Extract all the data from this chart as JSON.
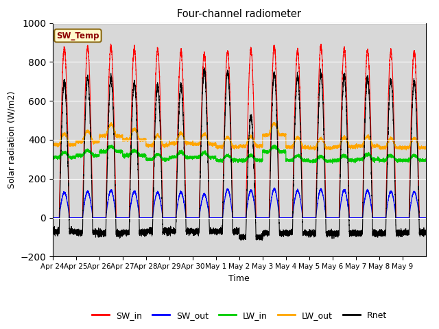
{
  "title": "Four-channel radiometer",
  "xlabel": "Time",
  "ylabel": "Solar radiation (W/m2)",
  "ylim": [
    -200,
    1000
  ],
  "annotation_text": "SW_Temp",
  "annotation_color": "#8B0000",
  "annotation_bg": "#FFFACD",
  "annotation_border": "#8B6914",
  "bg_color": "#D8D8D8",
  "fig_bg": "#FFFFFF",
  "colors": {
    "SW_in": "#FF0000",
    "SW_out": "#0000FF",
    "LW_in": "#00CC00",
    "LW_out": "#FFA500",
    "Rnet": "#000000"
  },
  "n_days": 16,
  "tick_labels": [
    "Apr 24",
    "Apr 25",
    "Apr 26",
    "Apr 27",
    "Apr 28",
    "Apr 29",
    "Apr 30",
    "May 1",
    "May 2",
    "May 3",
    "May 4",
    "May 5",
    "May 6",
    "May 7",
    "May 8",
    "May 9"
  ],
  "SW_in_peaks": [
    870,
    875,
    880,
    870,
    865,
    855,
    840,
    855,
    862,
    880,
    860,
    880,
    870,
    860,
    855,
    855
  ],
  "SW_out_peaks": [
    130,
    135,
    140,
    135,
    130,
    130,
    120,
    145,
    140,
    148,
    140,
    145,
    142,
    140,
    135,
    133
  ],
  "LW_in_base": [
    310,
    320,
    340,
    320,
    300,
    310,
    310,
    295,
    295,
    340,
    295,
    290,
    295,
    300,
    295,
    295
  ],
  "LW_out_base": [
    375,
    390,
    420,
    400,
    372,
    382,
    377,
    363,
    368,
    425,
    362,
    358,
    363,
    368,
    360,
    360
  ],
  "LW_out_hump": [
    55,
    55,
    60,
    55,
    52,
    52,
    52,
    50,
    50,
    58,
    48,
    48,
    48,
    50,
    48,
    48
  ],
  "Rnet_peaks": [
    700,
    720,
    720,
    695,
    680,
    680,
    760,
    750,
    520,
    745,
    730,
    740,
    730,
    720,
    710,
    700
  ],
  "Rnet_night": [
    -70,
    -75,
    -80,
    -75,
    -70,
    -70,
    -70,
    -70,
    -100,
    -80,
    -80,
    -80,
    -80,
    -80,
    -80,
    -75
  ]
}
